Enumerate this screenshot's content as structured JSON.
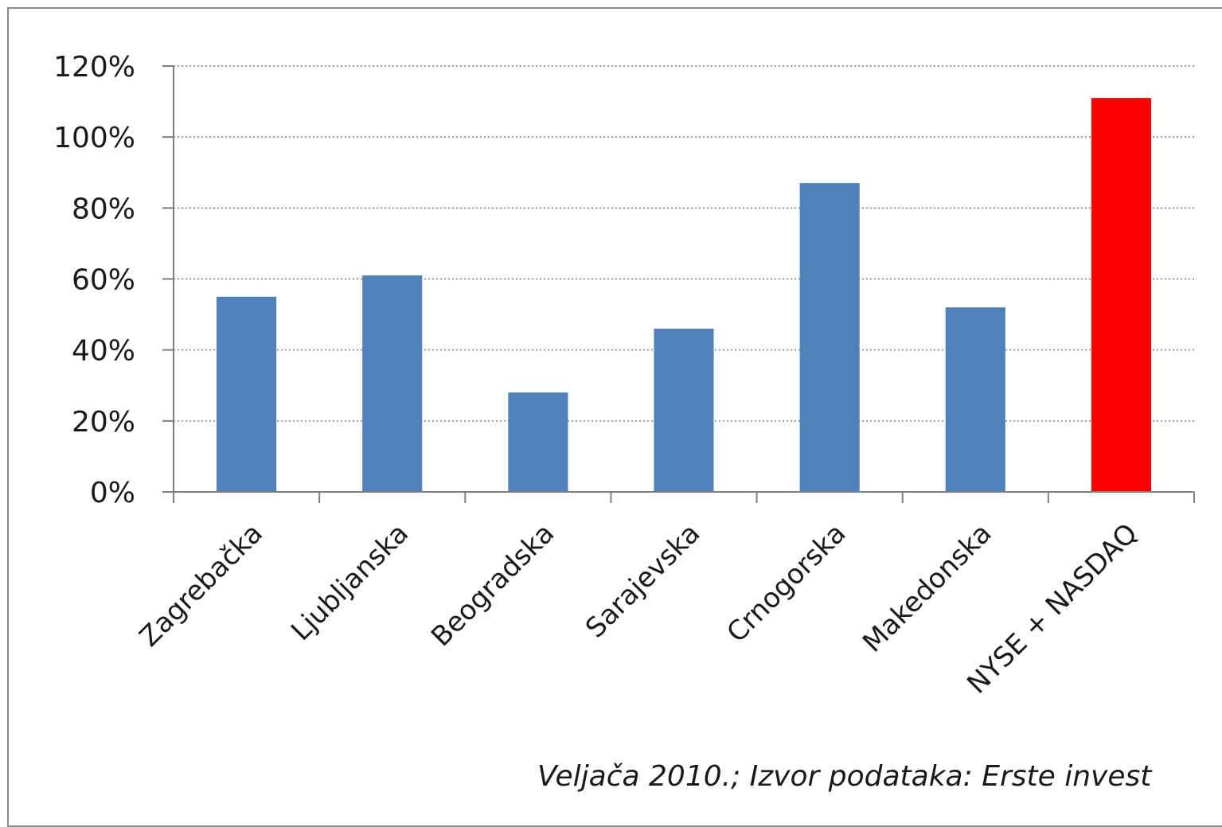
{
  "chart_data": {
    "type": "bar",
    "title": "",
    "xlabel": "",
    "ylabel": "",
    "categories": [
      "Zagrebačka",
      "Ljubljanska",
      "Beogradska",
      "Sarajevska",
      "Crnogorska",
      "Makedonska",
      "NYSE + NASDAQ"
    ],
    "values": [
      55,
      61,
      28,
      46,
      87,
      52,
      111
    ],
    "bar_colors": [
      "#4f81bd",
      "#4f81bd",
      "#4f81bd",
      "#4f81bd",
      "#4f81bd",
      "#4f81bd",
      "#ff0000"
    ],
    "ylim": [
      0,
      120
    ],
    "yticks": [
      0,
      20,
      40,
      60,
      80,
      100,
      120
    ],
    "ytick_labels": [
      "0%",
      "20%",
      "40%",
      "60%",
      "80%",
      "100%",
      "120%"
    ],
    "grid": true,
    "legend": "none",
    "note": "Veljača 2010.; Izvor podataka: Erste invest"
  }
}
